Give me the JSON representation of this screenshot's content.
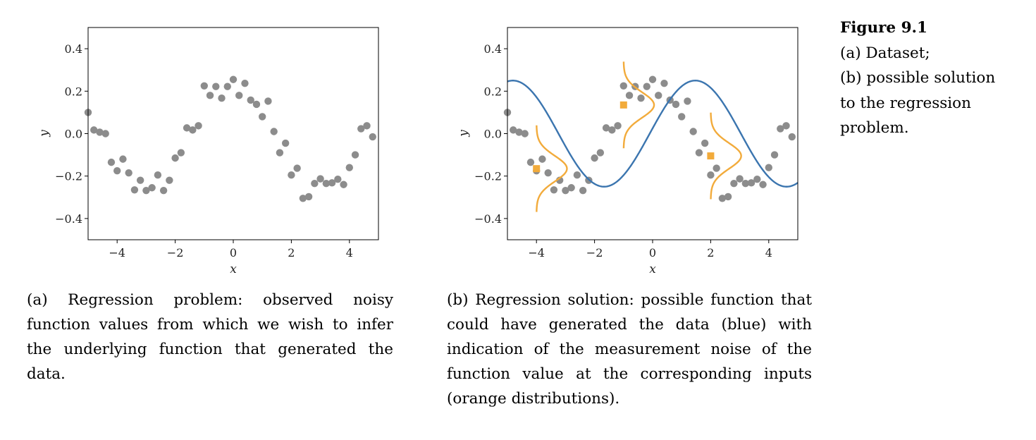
{
  "figure": {
    "title": "Figure 9.1",
    "lines": [
      "(a) Dataset;",
      "(b) possible solution",
      "to the regression",
      "problem."
    ]
  },
  "captions": {
    "a": "(a) Regression problem: observed noisy function values from which we wish to infer the underlying function that generated the data.",
    "b": "(b) Regression solution: possible function that could have generated the data (blue) with indication of the measurement noise of the function value at the corresponding inputs (orange distributions)."
  },
  "colors": {
    "points": "#8c8c8c",
    "curve": "#3b75af",
    "noise": "#f2ab3b",
    "axis": "#000000"
  },
  "chart_data": [
    {
      "type": "scatter",
      "panel": "a",
      "xlabel": "x",
      "ylabel": "y",
      "xlim": [
        -5,
        5
      ],
      "ylim": [
        -0.5,
        0.5
      ],
      "xticks": [
        -4,
        -2,
        0,
        2,
        4
      ],
      "xtick_labels": [
        "−4",
        "−2",
        "0",
        "2",
        "4"
      ],
      "yticks": [
        0.4,
        0.2,
        0.0,
        -0.2,
        -0.4
      ],
      "ytick_labels": [
        "0.4",
        "0.2",
        "0.0",
        "−0.2",
        "−0.4"
      ],
      "grid": false,
      "points": [
        [
          -5.0,
          0.1
        ],
        [
          -4.8,
          0.017
        ],
        [
          -4.6,
          0.007
        ],
        [
          -4.4,
          0.0
        ],
        [
          -4.2,
          -0.135
        ],
        [
          -4.0,
          -0.175
        ],
        [
          -3.8,
          -0.12
        ],
        [
          -3.6,
          -0.185
        ],
        [
          -3.4,
          -0.265
        ],
        [
          -3.2,
          -0.22
        ],
        [
          -3.0,
          -0.268
        ],
        [
          -2.8,
          -0.255
        ],
        [
          -2.6,
          -0.195
        ],
        [
          -2.4,
          -0.268
        ],
        [
          -2.2,
          -0.22
        ],
        [
          -2.0,
          -0.115
        ],
        [
          -1.8,
          -0.09
        ],
        [
          -1.6,
          0.027
        ],
        [
          -1.4,
          0.017
        ],
        [
          -1.2,
          0.037
        ],
        [
          -1.0,
          0.225
        ],
        [
          -0.8,
          0.18
        ],
        [
          -0.6,
          0.222
        ],
        [
          -0.4,
          0.167
        ],
        [
          -0.2,
          0.222
        ],
        [
          0.0,
          0.255
        ],
        [
          0.2,
          0.18
        ],
        [
          0.4,
          0.237
        ],
        [
          0.6,
          0.158
        ],
        [
          0.8,
          0.138
        ],
        [
          1.0,
          0.08
        ],
        [
          1.2,
          0.153
        ],
        [
          1.4,
          0.01
        ],
        [
          1.6,
          -0.09
        ],
        [
          1.8,
          -0.045
        ],
        [
          2.0,
          -0.195
        ],
        [
          2.2,
          -0.163
        ],
        [
          2.4,
          -0.305
        ],
        [
          2.6,
          -0.297
        ],
        [
          2.8,
          -0.235
        ],
        [
          3.0,
          -0.213
        ],
        [
          3.2,
          -0.235
        ],
        [
          3.4,
          -0.232
        ],
        [
          3.6,
          -0.215
        ],
        [
          3.8,
          -0.24
        ],
        [
          4.0,
          -0.16
        ],
        [
          4.2,
          -0.1
        ],
        [
          4.4,
          0.023
        ],
        [
          4.6,
          0.037
        ],
        [
          4.8,
          -0.015
        ]
      ]
    },
    {
      "type": "scatter",
      "panel": "b",
      "xlabel": "x",
      "ylabel": "y",
      "xlim": [
        -5,
        5
      ],
      "ylim": [
        -0.5,
        0.5
      ],
      "xticks": [
        -4,
        -2,
        0,
        2,
        4
      ],
      "xtick_labels": [
        "−4",
        "−2",
        "0",
        "2",
        "4"
      ],
      "yticks": [
        0.4,
        0.2,
        0.0,
        -0.2,
        -0.4
      ],
      "ytick_labels": [
        "0.4",
        "0.2",
        "0.0",
        "−0.2",
        "−0.4"
      ],
      "grid": false,
      "points": [
        [
          -5.0,
          0.1
        ],
        [
          -4.8,
          0.017
        ],
        [
          -4.6,
          0.007
        ],
        [
          -4.4,
          0.0
        ],
        [
          -4.2,
          -0.135
        ],
        [
          -4.0,
          -0.175
        ],
        [
          -3.8,
          -0.12
        ],
        [
          -3.6,
          -0.185
        ],
        [
          -3.4,
          -0.265
        ],
        [
          -3.2,
          -0.22
        ],
        [
          -3.0,
          -0.268
        ],
        [
          -2.8,
          -0.255
        ],
        [
          -2.6,
          -0.195
        ],
        [
          -2.4,
          -0.268
        ],
        [
          -2.2,
          -0.22
        ],
        [
          -2.0,
          -0.115
        ],
        [
          -1.8,
          -0.09
        ],
        [
          -1.6,
          0.027
        ],
        [
          -1.4,
          0.017
        ],
        [
          -1.2,
          0.037
        ],
        [
          -1.0,
          0.225
        ],
        [
          -0.8,
          0.18
        ],
        [
          -0.6,
          0.222
        ],
        [
          -0.4,
          0.167
        ],
        [
          -0.2,
          0.222
        ],
        [
          0.0,
          0.255
        ],
        [
          0.2,
          0.18
        ],
        [
          0.4,
          0.237
        ],
        [
          0.6,
          0.158
        ],
        [
          0.8,
          0.138
        ],
        [
          1.0,
          0.08
        ],
        [
          1.2,
          0.153
        ],
        [
          1.4,
          0.01
        ],
        [
          1.6,
          -0.09
        ],
        [
          1.8,
          -0.045
        ],
        [
          2.0,
          -0.195
        ],
        [
          2.2,
          -0.163
        ],
        [
          2.4,
          -0.305
        ],
        [
          2.6,
          -0.297
        ],
        [
          2.8,
          -0.235
        ],
        [
          3.0,
          -0.213
        ],
        [
          3.2,
          -0.235
        ],
        [
          3.4,
          -0.232
        ],
        [
          3.6,
          -0.215
        ],
        [
          3.8,
          -0.24
        ],
        [
          4.0,
          -0.16
        ],
        [
          4.2,
          -0.1
        ],
        [
          4.4,
          0.023
        ],
        [
          4.6,
          0.037
        ],
        [
          4.8,
          -0.015
        ]
      ],
      "function": {
        "form": "A*sin(w*x + p)",
        "A": 0.25,
        "w": 1.0,
        "p": 0.1
      },
      "noise": [
        {
          "x": -4.0,
          "y": -0.165,
          "sigma": 0.06,
          "peak": 1.05
        },
        {
          "x": -1.0,
          "y": 0.135,
          "sigma": 0.06,
          "peak": 1.05
        },
        {
          "x": 2.0,
          "y": -0.105,
          "sigma": 0.06,
          "peak": 1.05
        }
      ]
    }
  ]
}
